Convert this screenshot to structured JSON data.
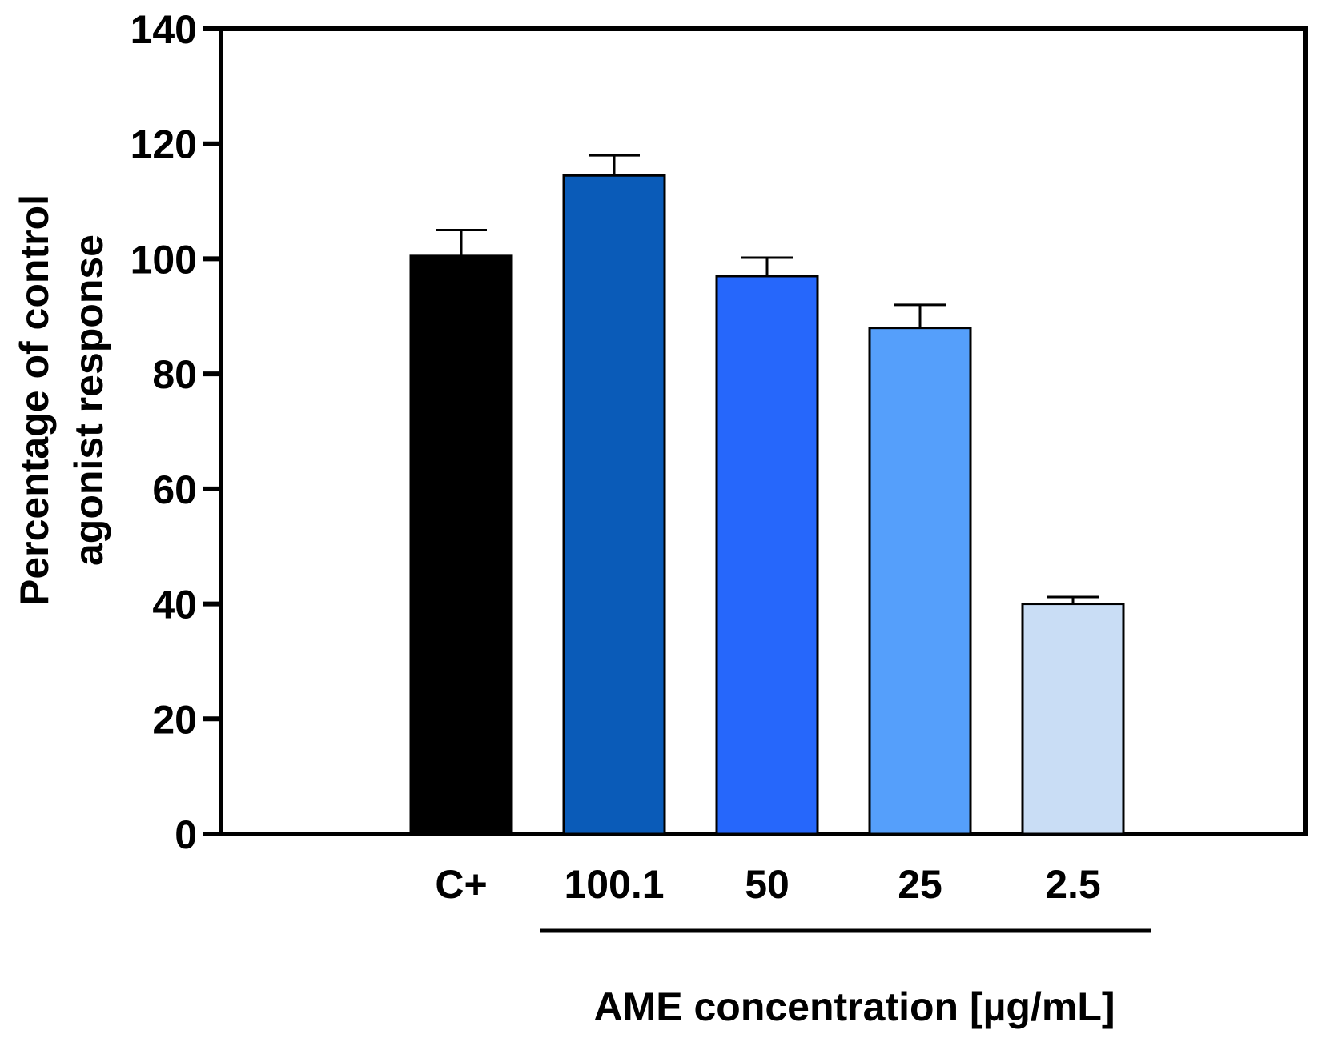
{
  "chart_data": {
    "type": "bar",
    "title": "",
    "ylabel_lines": [
      "Percentage of control",
      "agonist response"
    ],
    "xlabel": "AME concentration [µg/mL]",
    "ylim": [
      0,
      140
    ],
    "yticks": [
      "0",
      "20",
      "40",
      "60",
      "80",
      "100",
      "120",
      "140"
    ],
    "grid": false,
    "categories": [
      "C+",
      "100.1",
      "50",
      "25",
      "2.5"
    ],
    "values": [
      100.5,
      114.5,
      97,
      88,
      40
    ],
    "errors": [
      4.5,
      3.5,
      3.2,
      4,
      1.2
    ],
    "colors": [
      "#000000",
      "#0a5bb8",
      "#2667fb",
      "#559ffb",
      "#c9ddf5"
    ],
    "group_bracket": {
      "from_category": "100.1",
      "to_category": "2.5"
    }
  }
}
